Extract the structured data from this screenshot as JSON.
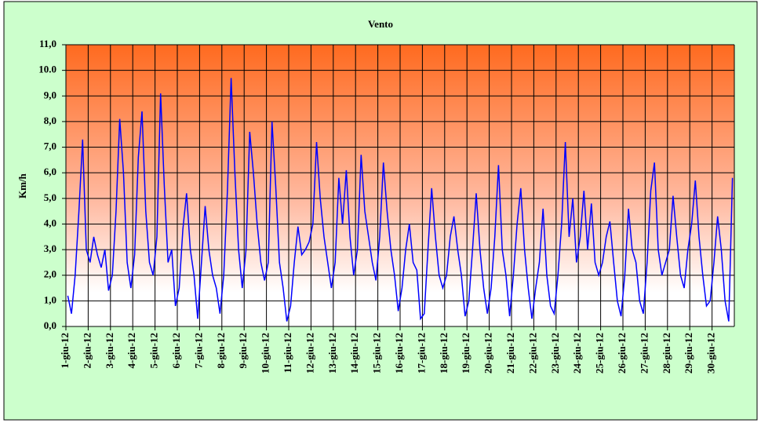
{
  "chart_data": {
    "type": "line",
    "title": "Vento",
    "y_label": "Km/h",
    "categories": [
      "1-giu-12",
      null,
      null,
      null,
      null,
      null,
      "2-giu-12",
      null,
      null,
      null,
      null,
      null,
      "3-giu-12",
      null,
      null,
      null,
      null,
      null,
      "4-giu-12",
      null,
      null,
      null,
      null,
      null,
      "5-giu-12",
      null,
      null,
      null,
      null,
      null,
      "6-giu-12",
      null,
      null,
      null,
      null,
      null,
      "7-giu-12",
      null,
      null,
      null,
      null,
      null,
      "8-giu-12",
      null,
      null,
      null,
      null,
      null,
      "9-giu-12",
      null,
      null,
      null,
      null,
      null,
      "10-giu-12",
      null,
      null,
      null,
      null,
      null,
      "11-giu-12",
      null,
      null,
      null,
      null,
      null,
      "12-giu-12",
      null,
      null,
      null,
      null,
      null,
      "13-giu-12",
      null,
      null,
      null,
      null,
      null,
      "14-giu-12",
      null,
      null,
      null,
      null,
      null,
      "15-giu-12",
      null,
      null,
      null,
      null,
      null,
      "16-giu-12",
      null,
      null,
      null,
      null,
      null,
      "17-giu-12",
      null,
      null,
      null,
      null,
      null,
      "18-giu-12",
      null,
      null,
      null,
      null,
      null,
      "19-giu-12",
      null,
      null,
      null,
      null,
      null,
      "20-giu-12",
      null,
      null,
      null,
      null,
      null,
      "21-giu-12",
      null,
      null,
      null,
      null,
      null,
      "22-giu-12",
      null,
      null,
      null,
      null,
      null,
      "23-giu-12",
      null,
      null,
      null,
      null,
      null,
      "24-giu-12",
      null,
      null,
      null,
      null,
      null,
      "25-giu-12",
      null,
      null,
      null,
      null,
      null,
      "26-giu-12",
      null,
      null,
      null,
      null,
      null,
      "27-giu-12",
      null,
      null,
      null,
      null,
      null,
      "28-giu-12",
      null,
      null,
      null,
      null,
      null,
      "29-giu-12",
      null,
      null,
      null,
      null,
      null,
      "30-giu-12",
      null,
      null,
      null,
      null,
      null
    ],
    "series": [
      {
        "name": "Vento",
        "color": "#0000ff",
        "values": [
          1.2,
          0.5,
          2.0,
          4.5,
          7.3,
          3.0,
          2.5,
          3.5,
          2.8,
          2.3,
          3.0,
          1.4,
          2.0,
          4.5,
          8.1,
          6.0,
          2.5,
          1.5,
          2.8,
          6.6,
          8.4,
          4.5,
          2.5,
          2.0,
          3.5,
          9.1,
          5.5,
          2.5,
          3.0,
          0.8,
          1.5,
          3.8,
          5.2,
          3.0,
          2.0,
          0.3,
          2.5,
          4.7,
          3.0,
          2.0,
          1.5,
          0.5,
          2.0,
          5.3,
          9.7,
          6.0,
          3.0,
          1.5,
          3.0,
          7.6,
          6.0,
          4.0,
          2.5,
          1.8,
          2.5,
          8.0,
          5.5,
          2.5,
          1.5,
          0.2,
          0.8,
          2.5,
          3.9,
          2.8,
          3.0,
          3.3,
          4.0,
          7.2,
          5.0,
          3.5,
          2.5,
          1.5,
          2.5,
          5.8,
          4.0,
          6.1,
          3.5,
          2.0,
          3.0,
          6.7,
          4.5,
          3.5,
          2.5,
          1.8,
          3.5,
          6.4,
          4.5,
          3.0,
          2.0,
          0.6,
          1.5,
          3.0,
          4.0,
          2.5,
          2.2,
          0.3,
          0.5,
          3.0,
          5.4,
          3.5,
          2.0,
          1.5,
          2.0,
          3.5,
          4.3,
          3.0,
          2.0,
          0.4,
          1.0,
          3.0,
          5.2,
          3.0,
          1.5,
          0.5,
          1.5,
          3.5,
          6.3,
          3.0,
          2.0,
          0.4,
          2.0,
          4.0,
          5.4,
          3.0,
          1.5,
          0.3,
          1.5,
          2.5,
          4.6,
          2.0,
          0.8,
          0.5,
          2.0,
          4.0,
          7.2,
          3.5,
          5.0,
          2.5,
          3.5,
          5.3,
          3.0,
          4.8,
          2.5,
          2.0,
          2.5,
          3.5,
          4.1,
          2.5,
          1.0,
          0.4,
          2.0,
          4.6,
          3.0,
          2.5,
          1.0,
          0.5,
          2.5,
          5.3,
          6.4,
          3.0,
          2.0,
          2.5,
          3.0,
          5.1,
          3.5,
          2.0,
          1.5,
          3.0,
          4.0,
          5.7,
          3.5,
          2.0,
          0.8,
          1.0,
          2.5,
          4.3,
          3.0,
          1.0,
          0.2,
          5.8
        ]
      }
    ],
    "ylim": [
      0,
      11
    ],
    "yticks": [
      {
        "value": 0,
        "label": "0,0"
      },
      {
        "value": 1,
        "label": "1,0"
      },
      {
        "value": 2,
        "label": "2,0"
      },
      {
        "value": 3,
        "label": "3,0"
      },
      {
        "value": 4,
        "label": "4,0"
      },
      {
        "value": 5,
        "label": "5,0"
      },
      {
        "value": 6,
        "label": "6,0"
      },
      {
        "value": 7,
        "label": "7,0"
      },
      {
        "value": 8,
        "label": "8,0"
      },
      {
        "value": 9,
        "label": "9,0"
      },
      {
        "value": 10,
        "label": "10.0"
      },
      {
        "value": 11,
        "label": "11,0"
      }
    ],
    "grid": true
  }
}
